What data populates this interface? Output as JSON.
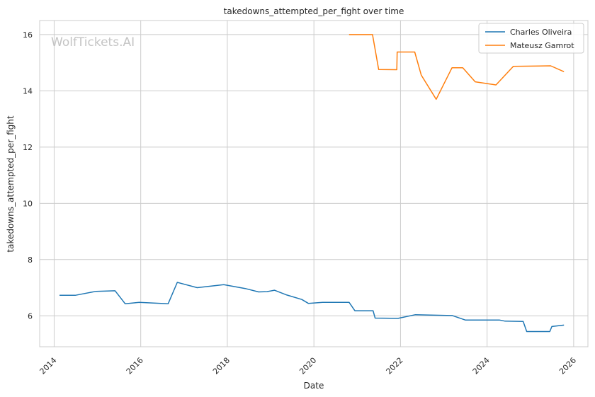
{
  "chart_data": {
    "type": "line",
    "title": "takedowns_attempted_per_fight over time",
    "xlabel": "Date",
    "ylabel": "takedowns_attempted_per_fight",
    "watermark": "WolfTickets.AI",
    "x_ticks": [
      "2014",
      "2016",
      "2018",
      "2020",
      "2022",
      "2024",
      "2026"
    ],
    "y_ticks": [
      "6",
      "8",
      "10",
      "12",
      "14",
      "16"
    ],
    "xlim": [
      "2013-09-01",
      "2026-05-01"
    ],
    "ylim": [
      4.9,
      16.5
    ],
    "grid": true,
    "legend_position": "top-right",
    "series": [
      {
        "name": "Charles Oliveira",
        "color": "#1f77b4",
        "points": [
          [
            "2014-02-15",
            6.73
          ],
          [
            "2014-06-28",
            6.73
          ],
          [
            "2014-12-20",
            6.87
          ],
          [
            "2015-05-30",
            6.89
          ],
          [
            "2015-08-23",
            6.43
          ],
          [
            "2015-12-19",
            6.48
          ],
          [
            "2016-08-20",
            6.43
          ],
          [
            "2016-11-05",
            7.19
          ],
          [
            "2017-04-22",
            7.0
          ],
          [
            "2017-12-02",
            7.11
          ],
          [
            "2018-06-01",
            6.97
          ],
          [
            "2018-09-22",
            6.85
          ],
          [
            "2018-12-02",
            6.86
          ],
          [
            "2019-02-02",
            6.91
          ],
          [
            "2019-05-18",
            6.74
          ],
          [
            "2019-09-21",
            6.58
          ],
          [
            "2019-11-16",
            6.44
          ],
          [
            "2020-03-14",
            6.48
          ],
          [
            "2020-10-24",
            6.48
          ],
          [
            "2020-12-12",
            6.18
          ],
          [
            "2021-05-15",
            6.18
          ],
          [
            "2021-06-01",
            5.92
          ],
          [
            "2021-12-11",
            5.91
          ],
          [
            "2022-05-07",
            6.04
          ],
          [
            "2023-03-14",
            6.01
          ],
          [
            "2023-07-01",
            5.85
          ],
          [
            "2024-04-13",
            5.85
          ],
          [
            "2024-06-01",
            5.81
          ],
          [
            "2024-11-01",
            5.8
          ],
          [
            "2024-12-01",
            5.44
          ],
          [
            "2025-06-14",
            5.44
          ],
          [
            "2025-07-01",
            5.62
          ],
          [
            "2025-10-11",
            5.67
          ]
        ]
      },
      {
        "name": "Mateusz Gamrot",
        "color": "#ff7f0e",
        "points": [
          [
            "2020-10-24",
            16.0
          ],
          [
            "2021-05-10",
            16.0
          ],
          [
            "2021-07-01",
            14.76
          ],
          [
            "2021-12-01",
            14.75
          ],
          [
            "2021-12-04",
            15.38
          ],
          [
            "2022-05-01",
            15.38
          ],
          [
            "2022-06-25",
            14.56
          ],
          [
            "2022-10-29",
            13.7
          ],
          [
            "2023-03-11",
            14.82
          ],
          [
            "2023-06-10",
            14.82
          ],
          [
            "2023-09-23",
            14.32
          ],
          [
            "2024-03-16",
            14.21
          ],
          [
            "2024-08-10",
            14.87
          ],
          [
            "2025-06-21",
            14.89
          ],
          [
            "2025-10-11",
            14.68
          ]
        ]
      }
    ]
  }
}
